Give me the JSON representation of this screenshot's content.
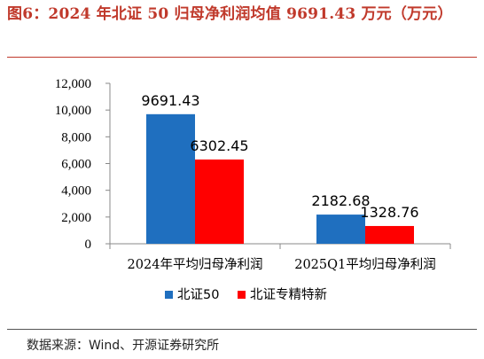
{
  "figure": {
    "title": "图6：2024 年北证 50 归母净利润均值 9691.43 万元（万元）",
    "source": "数据来源：Wind、开源证券研究所"
  },
  "chart_data": {
    "type": "bar",
    "categories": [
      "2024年平均归母净利润",
      "2025Q1平均归母净利润"
    ],
    "series": [
      {
        "name": "北证50",
        "values": [
          9691.43,
          2182.68
        ],
        "value_labels": [
          "9691.43",
          "2182.68"
        ],
        "color": "#1f6fbf"
      },
      {
        "name": "北证专精特新",
        "values": [
          6302.45,
          1328.76
        ],
        "value_labels": [
          "6302.45",
          "1328.76"
        ],
        "color": "#ff0000"
      }
    ],
    "ylim": [
      0,
      12000
    ],
    "yticks": [
      0,
      2000,
      4000,
      6000,
      8000,
      10000,
      12000
    ],
    "ytick_labels": [
      "0",
      "2,000",
      "4,000",
      "6,000",
      "8,000",
      "10,000",
      "12,000"
    ],
    "grid": false,
    "legend_position": "bottom"
  }
}
